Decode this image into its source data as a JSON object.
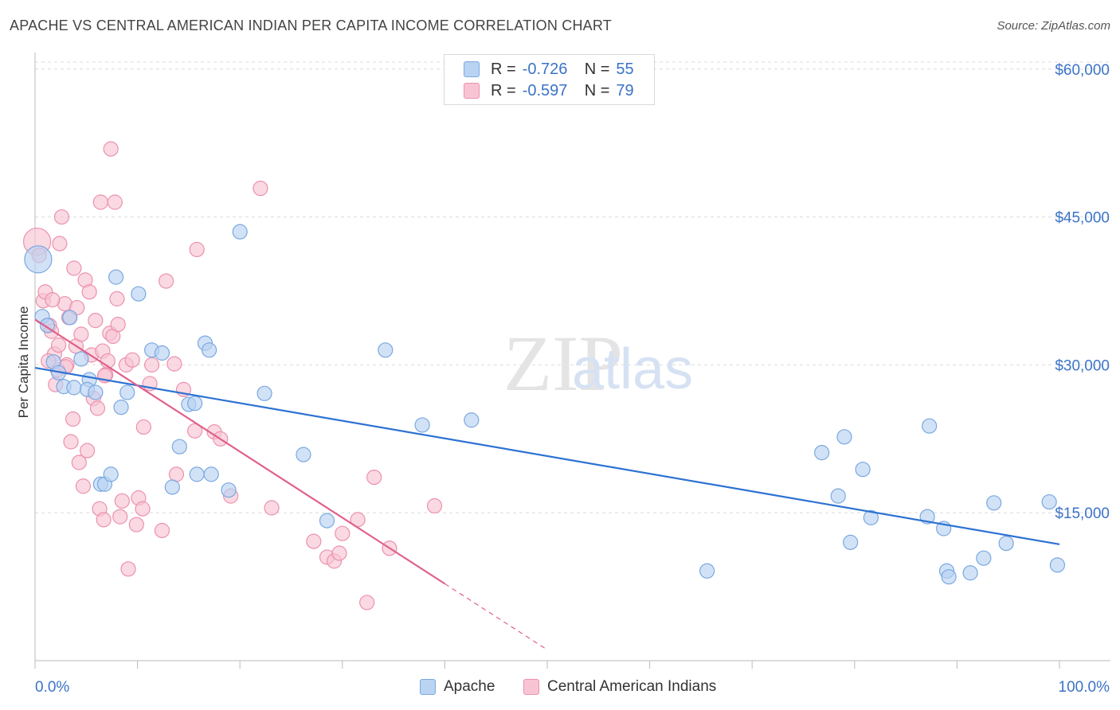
{
  "title": "APACHE VS CENTRAL AMERICAN INDIAN PER CAPITA INCOME CORRELATION CHART",
  "source": "Source: ZipAtlas.com",
  "watermark": {
    "zip": "ZIP",
    "atlas": "atlas"
  },
  "legend": {
    "apache": {
      "r_label": "R =",
      "r_value": "-0.726",
      "n_label": "N =",
      "n_value": "55"
    },
    "cai": {
      "r_label": "R =",
      "r_value": "-0.597",
      "n_label": "N =",
      "n_value": "79"
    }
  },
  "colors": {
    "apache_fill": "#b9d3f2",
    "apache_stroke": "#7aa8e0",
    "apache_line": "#2d72d2",
    "cai_fill": "#f8c4d3",
    "cai_stroke": "#ec91ae",
    "cai_line": "#e0608c",
    "axis_text": "#3b73c8",
    "grid": "#dcdcdc"
  },
  "chart_data": {
    "type": "scatter",
    "xlabel": "",
    "ylabel": "Per Capita Income",
    "xlim": [
      0,
      100
    ],
    "ylim": [
      0,
      62000
    ],
    "x_tick_labels": [
      "0.0%",
      "100.0%"
    ],
    "y_ticks": [
      15000,
      30000,
      45000,
      60000
    ],
    "y_tick_labels": [
      "$15,000",
      "$30,000",
      "$45,000",
      "$60,000"
    ],
    "grid": true,
    "legend_position": "top-center",
    "series": [
      {
        "name": "Apache",
        "r": -0.726,
        "n": 55,
        "trend": {
          "x0": 0,
          "y0": 29700,
          "x1": 100,
          "y1": 11800
        },
        "points": [
          {
            "x": 0.3,
            "y": 40700,
            "big": true
          },
          {
            "x": 0.7,
            "y": 34900
          },
          {
            "x": 1.2,
            "y": 34000
          },
          {
            "x": 1.8,
            "y": 30300
          },
          {
            "x": 2.3,
            "y": 29200
          },
          {
            "x": 2.8,
            "y": 27800
          },
          {
            "x": 3.8,
            "y": 27700
          },
          {
            "x": 5.3,
            "y": 28500
          },
          {
            "x": 3.4,
            "y": 34800
          },
          {
            "x": 4.5,
            "y": 30600
          },
          {
            "x": 5.1,
            "y": 27500
          },
          {
            "x": 5.9,
            "y": 27200
          },
          {
            "x": 6.4,
            "y": 17900
          },
          {
            "x": 6.8,
            "y": 17900
          },
          {
            "x": 7.4,
            "y": 18900
          },
          {
            "x": 7.9,
            "y": 38900
          },
          {
            "x": 8.4,
            "y": 25700
          },
          {
            "x": 9.0,
            "y": 27200
          },
          {
            "x": 10.1,
            "y": 37200
          },
          {
            "x": 11.4,
            "y": 31500
          },
          {
            "x": 12.4,
            "y": 31200
          },
          {
            "x": 13.4,
            "y": 17600
          },
          {
            "x": 14.1,
            "y": 21700
          },
          {
            "x": 15.0,
            "y": 26000
          },
          {
            "x": 15.6,
            "y": 26100
          },
          {
            "x": 15.8,
            "y": 18900
          },
          {
            "x": 16.6,
            "y": 32200
          },
          {
            "x": 17.0,
            "y": 31500
          },
          {
            "x": 17.2,
            "y": 18900
          },
          {
            "x": 18.9,
            "y": 17300
          },
          {
            "x": 20.0,
            "y": 43500
          },
          {
            "x": 22.4,
            "y": 27100
          },
          {
            "x": 26.2,
            "y": 20900
          },
          {
            "x": 28.5,
            "y": 14200
          },
          {
            "x": 34.2,
            "y": 31500
          },
          {
            "x": 37.8,
            "y": 23900
          },
          {
            "x": 42.6,
            "y": 24400
          },
          {
            "x": 65.6,
            "y": 9100
          },
          {
            "x": 76.8,
            "y": 21100
          },
          {
            "x": 78.4,
            "y": 16700
          },
          {
            "x": 79.0,
            "y": 22700
          },
          {
            "x": 79.6,
            "y": 12000
          },
          {
            "x": 80.8,
            "y": 19400
          },
          {
            "x": 81.6,
            "y": 14500
          },
          {
            "x": 87.1,
            "y": 14600
          },
          {
            "x": 87.3,
            "y": 23800
          },
          {
            "x": 88.7,
            "y": 13400
          },
          {
            "x": 89.0,
            "y": 9100
          },
          {
            "x": 89.2,
            "y": 8500
          },
          {
            "x": 91.3,
            "y": 8900
          },
          {
            "x": 92.6,
            "y": 10400
          },
          {
            "x": 93.6,
            "y": 16000
          },
          {
            "x": 94.8,
            "y": 11900
          },
          {
            "x": 99.0,
            "y": 16100
          },
          {
            "x": 99.8,
            "y": 9700
          }
        ]
      },
      {
        "name": "Central American Indians",
        "r": -0.597,
        "n": 79,
        "trend": {
          "x0": 0,
          "y0": 34600,
          "x1": 40.0,
          "y1": 7800,
          "dash_x1": 50.0,
          "dash_y1": 1100
        },
        "points": [
          {
            "x": 0.2,
            "y": 42500,
            "big": true
          },
          {
            "x": 0.4,
            "y": 41100
          },
          {
            "x": 0.8,
            "y": 36500
          },
          {
            "x": 1.0,
            "y": 37400
          },
          {
            "x": 1.4,
            "y": 34000
          },
          {
            "x": 1.6,
            "y": 33400
          },
          {
            "x": 1.9,
            "y": 31100
          },
          {
            "x": 2.0,
            "y": 28000
          },
          {
            "x": 2.3,
            "y": 32000
          },
          {
            "x": 2.4,
            "y": 42300
          },
          {
            "x": 2.6,
            "y": 45000
          },
          {
            "x": 2.9,
            "y": 36200
          },
          {
            "x": 3.1,
            "y": 30000
          },
          {
            "x": 3.3,
            "y": 34800
          },
          {
            "x": 3.5,
            "y": 22200
          },
          {
            "x": 3.7,
            "y": 24500
          },
          {
            "x": 3.8,
            "y": 39800
          },
          {
            "x": 4.0,
            "y": 31900
          },
          {
            "x": 4.1,
            "y": 35800
          },
          {
            "x": 4.3,
            "y": 20100
          },
          {
            "x": 4.5,
            "y": 33100
          },
          {
            "x": 4.7,
            "y": 17700
          },
          {
            "x": 4.9,
            "y": 38600
          },
          {
            "x": 5.1,
            "y": 21300
          },
          {
            "x": 5.3,
            "y": 37400
          },
          {
            "x": 5.5,
            "y": 31000
          },
          {
            "x": 5.7,
            "y": 26600
          },
          {
            "x": 5.9,
            "y": 34500
          },
          {
            "x": 6.1,
            "y": 25600
          },
          {
            "x": 6.3,
            "y": 15400
          },
          {
            "x": 6.4,
            "y": 46500
          },
          {
            "x": 6.6,
            "y": 31400
          },
          {
            "x": 6.7,
            "y": 14300
          },
          {
            "x": 6.9,
            "y": 29000
          },
          {
            "x": 7.1,
            "y": 30400
          },
          {
            "x": 7.3,
            "y": 33200
          },
          {
            "x": 7.4,
            "y": 51900
          },
          {
            "x": 7.6,
            "y": 32900
          },
          {
            "x": 7.8,
            "y": 46500
          },
          {
            "x": 8.0,
            "y": 36700
          },
          {
            "x": 8.1,
            "y": 34100
          },
          {
            "x": 8.3,
            "y": 14600
          },
          {
            "x": 8.5,
            "y": 16200
          },
          {
            "x": 8.9,
            "y": 30000
          },
          {
            "x": 9.1,
            "y": 9300
          },
          {
            "x": 9.5,
            "y": 30500
          },
          {
            "x": 9.9,
            "y": 13800
          },
          {
            "x": 10.1,
            "y": 16500
          },
          {
            "x": 10.5,
            "y": 15400
          },
          {
            "x": 10.6,
            "y": 23700
          },
          {
            "x": 11.2,
            "y": 28100
          },
          {
            "x": 11.4,
            "y": 30000
          },
          {
            "x": 12.4,
            "y": 13200
          },
          {
            "x": 12.8,
            "y": 38500
          },
          {
            "x": 13.6,
            "y": 30100
          },
          {
            "x": 13.8,
            "y": 18900
          },
          {
            "x": 14.5,
            "y": 27500
          },
          {
            "x": 15.6,
            "y": 23300
          },
          {
            "x": 15.8,
            "y": 41700
          },
          {
            "x": 17.5,
            "y": 23200
          },
          {
            "x": 18.1,
            "y": 22500
          },
          {
            "x": 19.1,
            "y": 16700
          },
          {
            "x": 22.0,
            "y": 47900
          },
          {
            "x": 23.1,
            "y": 15500
          },
          {
            "x": 27.2,
            "y": 12100
          },
          {
            "x": 28.5,
            "y": 10500
          },
          {
            "x": 29.2,
            "y": 10100
          },
          {
            "x": 29.7,
            "y": 10900
          },
          {
            "x": 30.0,
            "y": 12900
          },
          {
            "x": 31.5,
            "y": 14300
          },
          {
            "x": 32.4,
            "y": 5900
          },
          {
            "x": 33.1,
            "y": 18600
          },
          {
            "x": 34.6,
            "y": 11400
          },
          {
            "x": 39.0,
            "y": 15700
          },
          {
            "x": 2.2,
            "y": 29500
          },
          {
            "x": 1.3,
            "y": 30400
          },
          {
            "x": 3.0,
            "y": 29800
          },
          {
            "x": 6.8,
            "y": 28900
          },
          {
            "x": 1.7,
            "y": 36600
          }
        ]
      }
    ]
  }
}
